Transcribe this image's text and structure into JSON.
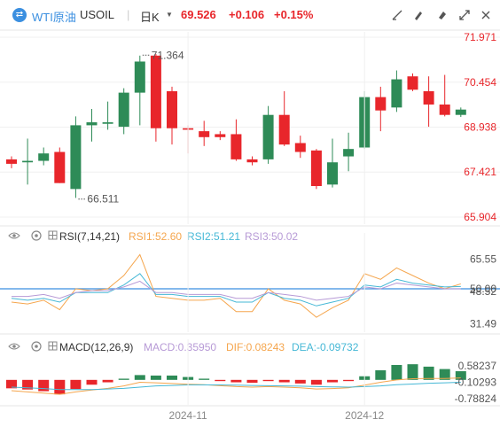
{
  "header": {
    "instrument_name": "WTI原油",
    "instrument_code": "USOIL",
    "period": "日K",
    "period_caret": "▼",
    "last_price": "69.526",
    "change": "+0.106",
    "change_pct": "+0.15%",
    "toolbar_icons": [
      "draw-line-icon",
      "draw-pen-icon",
      "eraser-icon",
      "fullscreen-icon",
      "close-icon"
    ]
  },
  "colors": {
    "up": "#2e8b57",
    "down": "#e8262b",
    "price_axis": "#e8262b",
    "rsi1": "#f5a64e",
    "rsi2": "#46b8d6",
    "rsi3": "#b79ad6",
    "macd": "#b79ad6",
    "dif": "#f5a64e",
    "dea": "#46b8d6",
    "rsi_50_line": "#3b8fe0"
  },
  "chart_data": [
    {
      "type": "candlestick",
      "title": "",
      "y_ticks": [
        "71.971",
        "70.454",
        "68.938",
        "67.421",
        "65.904"
      ],
      "ylim": [
        65.904,
        71.971
      ],
      "annotations": [
        {
          "text": "71.364",
          "value": 71.364,
          "candle": 8
        },
        {
          "text": "66.511",
          "value": 66.511,
          "candle": 4
        }
      ],
      "x_ticks": [
        {
          "label": "2024-11",
          "candle": 11
        },
        {
          "label": "2024-12",
          "candle": 22
        }
      ],
      "candles": [
        {
          "o": 67.85,
          "h": 67.95,
          "l": 67.55,
          "c": 67.7
        },
        {
          "o": 67.75,
          "h": 68.55,
          "l": 67.0,
          "c": 67.8
        },
        {
          "o": 67.8,
          "h": 68.25,
          "l": 67.65,
          "c": 68.05
        },
        {
          "o": 68.1,
          "h": 68.25,
          "l": 67.05,
          "c": 67.05
        },
        {
          "o": 66.85,
          "h": 69.3,
          "l": 66.55,
          "c": 69.0
        },
        {
          "o": 69.0,
          "h": 69.55,
          "l": 68.45,
          "c": 69.1
        },
        {
          "o": 69.05,
          "h": 69.8,
          "l": 68.85,
          "c": 69.1
        },
        {
          "o": 68.95,
          "h": 70.25,
          "l": 68.7,
          "c": 70.1
        },
        {
          "o": 70.1,
          "h": 71.35,
          "l": 69.0,
          "c": 71.15
        },
        {
          "o": 71.35,
          "h": 71.4,
          "l": 68.45,
          "c": 68.9
        },
        {
          "o": 70.15,
          "h": 70.3,
          "l": 68.35,
          "c": 68.9
        },
        {
          "o": 68.9,
          "h": 69.0,
          "l": 68.05,
          "c": 68.85
        },
        {
          "o": 68.8,
          "h": 69.15,
          "l": 68.3,
          "c": 68.6
        },
        {
          "o": 68.7,
          "h": 68.8,
          "l": 68.5,
          "c": 68.6
        },
        {
          "o": 68.7,
          "h": 69.2,
          "l": 67.8,
          "c": 67.85
        },
        {
          "o": 67.85,
          "h": 67.95,
          "l": 67.65,
          "c": 67.75
        },
        {
          "o": 67.85,
          "h": 69.65,
          "l": 67.7,
          "c": 69.35
        },
        {
          "o": 69.35,
          "h": 70.15,
          "l": 68.3,
          "c": 68.35
        },
        {
          "o": 68.4,
          "h": 68.65,
          "l": 67.9,
          "c": 68.1
        },
        {
          "o": 68.15,
          "h": 68.2,
          "l": 66.85,
          "c": 66.95
        },
        {
          "o": 67.0,
          "h": 68.55,
          "l": 66.9,
          "c": 67.75
        },
        {
          "o": 67.95,
          "h": 68.75,
          "l": 67.45,
          "c": 68.2
        },
        {
          "o": 68.25,
          "h": 70.15,
          "l": 68.2,
          "c": 69.95
        },
        {
          "o": 69.95,
          "h": 70.3,
          "l": 68.8,
          "c": 69.5
        },
        {
          "o": 69.6,
          "h": 70.85,
          "l": 69.45,
          "c": 70.55
        },
        {
          "o": 70.65,
          "h": 70.75,
          "l": 70.15,
          "c": 70.2
        },
        {
          "o": 70.15,
          "h": 70.65,
          "l": 68.95,
          "c": 69.7
        },
        {
          "o": 69.7,
          "h": 70.7,
          "l": 69.3,
          "c": 69.35
        },
        {
          "o": 69.35,
          "h": 69.6,
          "l": 69.28,
          "c": 69.53
        }
      ]
    },
    {
      "type": "line",
      "title": "RSI(7,14,21)",
      "legend": [
        {
          "label": "RSI1:52.60",
          "color_key": "rsi1"
        },
        {
          "label": "RSI2:51.21",
          "color_key": "rsi2"
        },
        {
          "label": "RSI3:50.02",
          "color_key": "rsi3"
        }
      ],
      "y_ticks": [
        "65.55",
        "50.00",
        "48.52",
        "31.49"
      ],
      "ylim": [
        29.0,
        71.0
      ],
      "reference_line": 50.0,
      "series": [
        {
          "name": "RSI1",
          "color_key": "rsi1",
          "values": [
            43,
            42,
            44,
            39,
            50,
            49,
            50,
            57,
            68,
            46,
            45,
            44,
            44,
            45,
            38,
            38,
            50,
            44,
            42,
            35,
            40,
            44,
            58,
            55,
            61,
            57,
            53,
            50,
            52.6
          ]
        },
        {
          "name": "RSI2",
          "color_key": "rsi2",
          "values": [
            45,
            44,
            45,
            43,
            48,
            48,
            48,
            52,
            58,
            47,
            47,
            46,
            46,
            46,
            43,
            43,
            48,
            45,
            44,
            41,
            43,
            45,
            52,
            51,
            55,
            53,
            52,
            51,
            51.21
          ]
        },
        {
          "name": "RSI3",
          "color_key": "rsi3",
          "values": [
            46,
            46,
            47,
            45,
            48,
            49,
            49,
            51,
            54,
            48,
            48,
            47,
            47,
            47,
            45,
            45,
            48,
            47,
            46,
            44,
            45,
            46,
            51,
            50,
            53,
            52,
            51,
            50,
            50.02
          ]
        }
      ]
    },
    {
      "type": "bar+line",
      "title": "MACD(12,26,9)",
      "legend": [
        {
          "label": "MACD:0.35950",
          "color_key": "macd"
        },
        {
          "label": "DIF:0.08243",
          "color_key": "dif"
        },
        {
          "label": "DEA:-0.09732",
          "color_key": "dea"
        }
      ],
      "y_ticks": [
        "0.58237",
        "-0.10293",
        "-0.78824"
      ],
      "ylim": [
        -1.0,
        0.95
      ],
      "macd_hist": [
        -0.35,
        -0.4,
        -0.47,
        -0.6,
        -0.38,
        -0.2,
        -0.1,
        0.05,
        0.2,
        0.18,
        0.18,
        0.12,
        0.05,
        -0.05,
        -0.1,
        -0.12,
        -0.05,
        -0.1,
        -0.15,
        -0.2,
        -0.1,
        -0.05,
        0.15,
        0.4,
        0.62,
        0.65,
        0.55,
        0.45,
        0.36
      ],
      "dif": [
        -0.45,
        -0.5,
        -0.55,
        -0.6,
        -0.5,
        -0.42,
        -0.35,
        -0.25,
        -0.1,
        -0.12,
        -0.15,
        -0.18,
        -0.2,
        -0.24,
        -0.28,
        -0.3,
        -0.28,
        -0.3,
        -0.33,
        -0.38,
        -0.36,
        -0.33,
        -0.22,
        -0.1,
        0.0,
        0.05,
        0.06,
        0.06,
        0.08
      ],
      "dea": [
        -0.3,
        -0.33,
        -0.36,
        -0.4,
        -0.4,
        -0.4,
        -0.38,
        -0.35,
        -0.3,
        -0.25,
        -0.23,
        -0.21,
        -0.21,
        -0.21,
        -0.22,
        -0.23,
        -0.24,
        -0.25,
        -0.26,
        -0.28,
        -0.29,
        -0.3,
        -0.28,
        -0.25,
        -0.2,
        -0.17,
        -0.14,
        -0.12,
        -0.1
      ]
    }
  ]
}
